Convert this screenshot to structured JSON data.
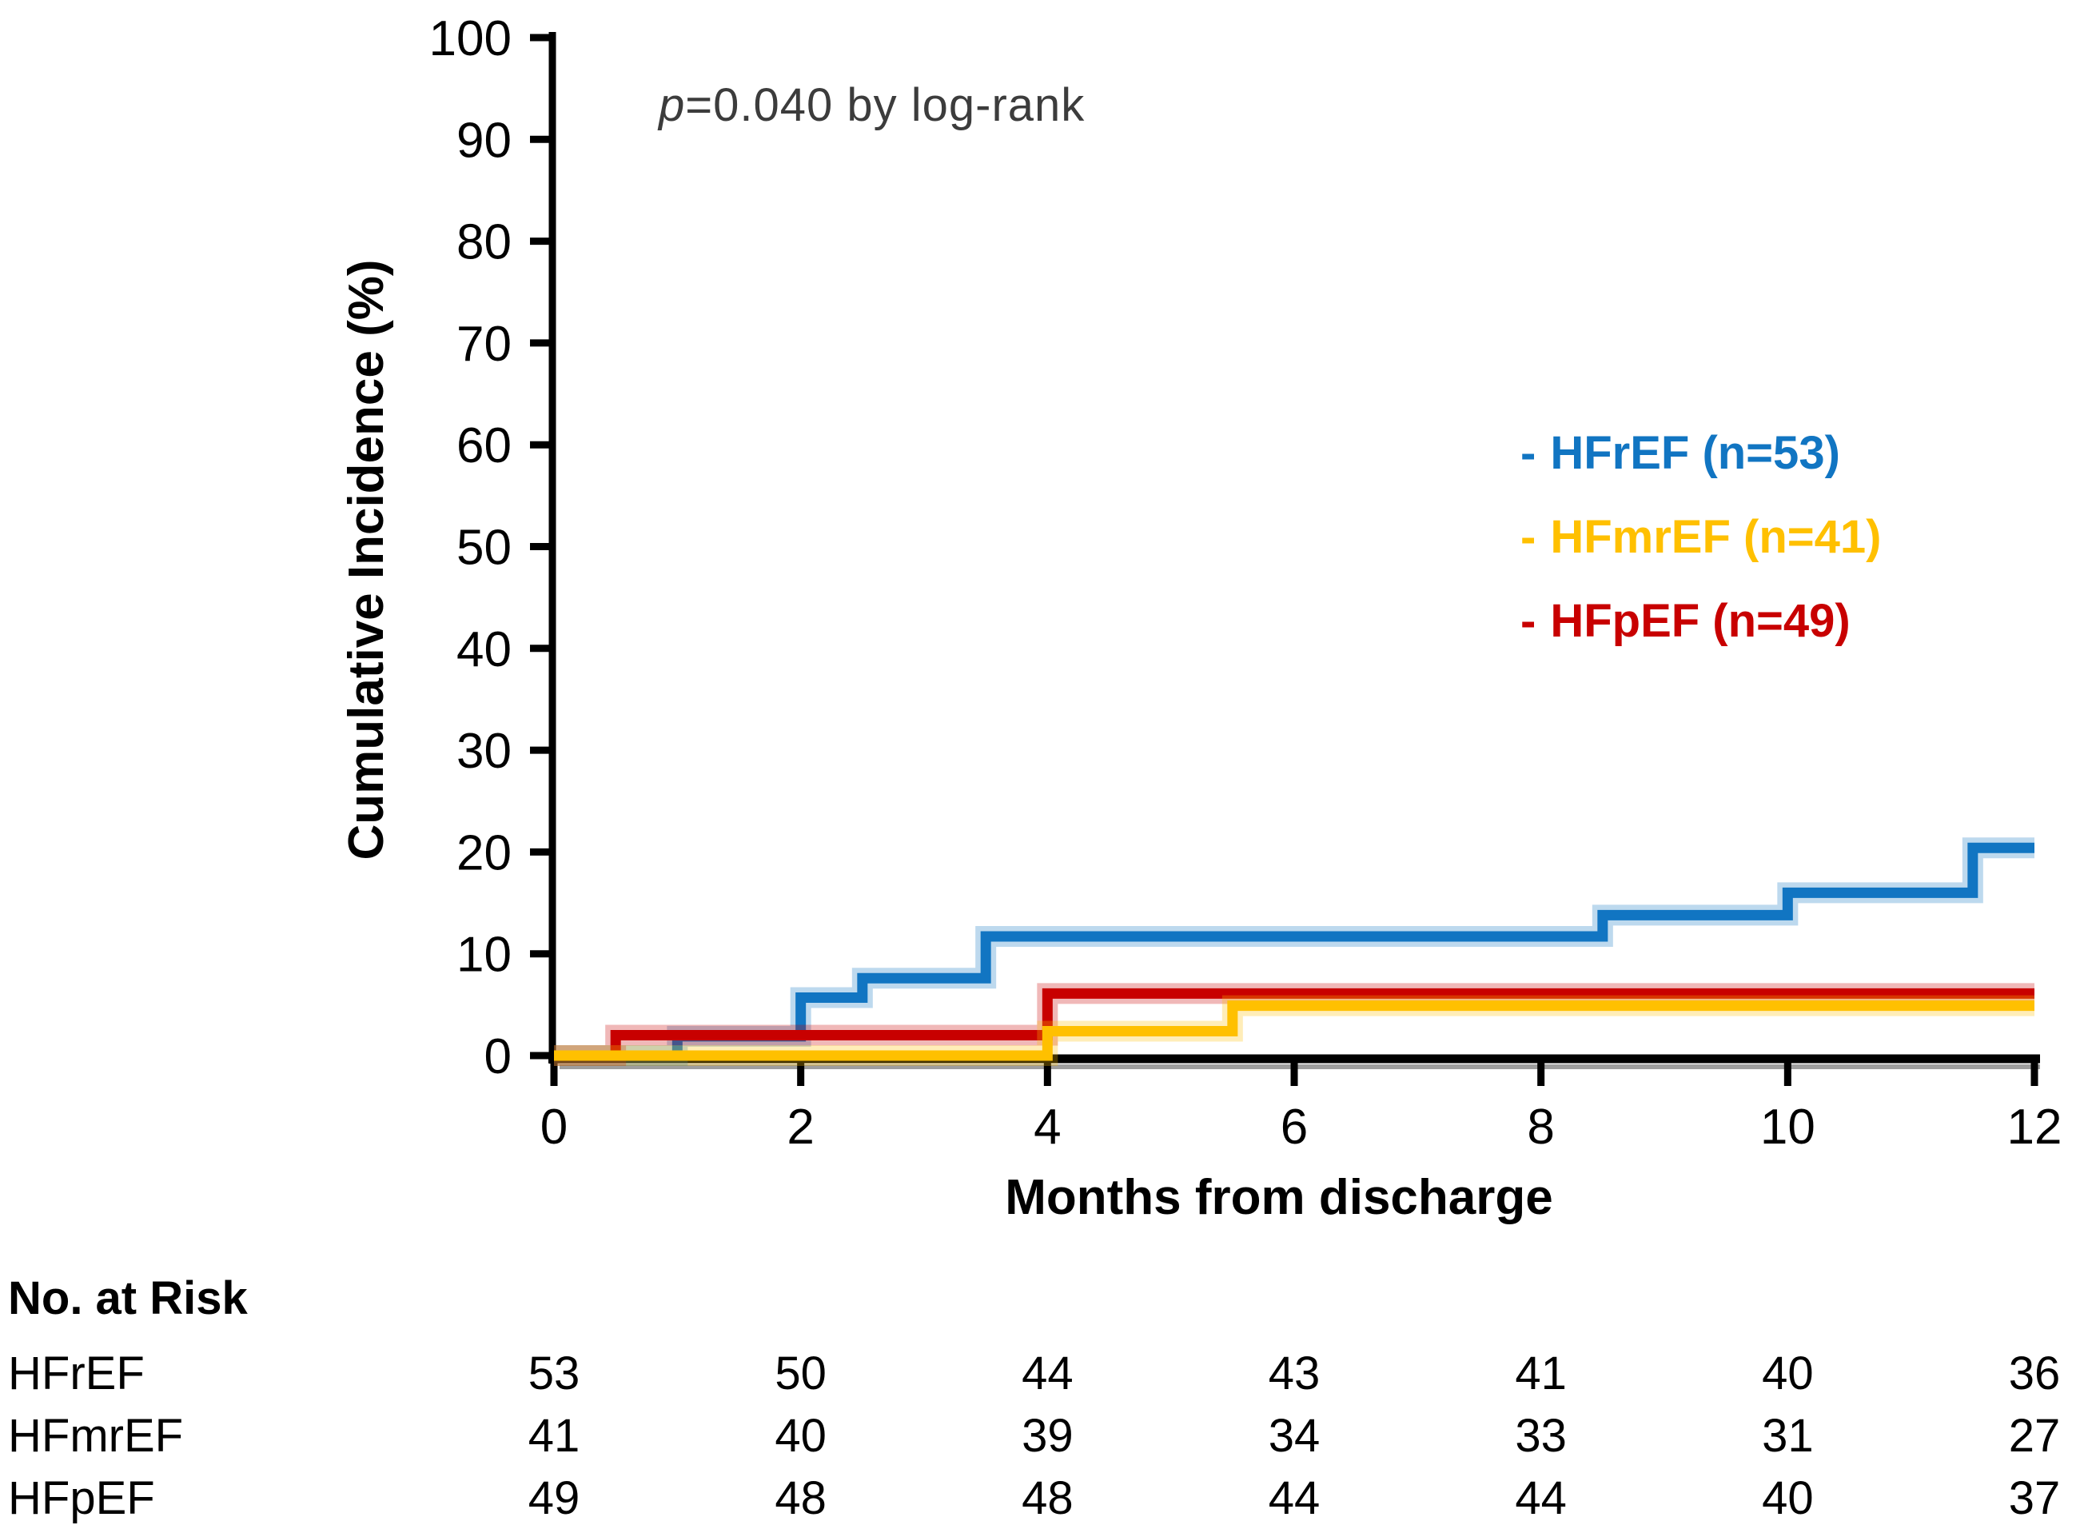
{
  "figure": {
    "annotation": {
      "p_symbol": "p",
      "p_rest": "=0.040 by log-rank"
    },
    "y_axis": {
      "title": "Cumulative Incidence (%)"
    },
    "x_axis": {
      "title": "Months from discharge"
    },
    "legend": [
      {
        "marker": "-",
        "label": "HFrEF (n=53)",
        "color": "#1175C2"
      },
      {
        "marker": "-",
        "label": "HFmrEF (n=41)",
        "color": "#FFC000"
      },
      {
        "marker": "-",
        "label": "HFpEF (n=49)",
        "color": "#C80000"
      }
    ]
  },
  "chart_data": {
    "type": "line",
    "subtype": "kaplan-meier-step-cumulative-incidence",
    "title": "",
    "xlabel": "Months from discharge",
    "ylabel": "Cumulative Incidence (%)",
    "xlim": [
      0,
      12
    ],
    "ylim": [
      0,
      100
    ],
    "x_ticks": [
      0,
      2,
      4,
      6,
      8,
      10,
      12
    ],
    "y_ticks": [
      0,
      10,
      20,
      30,
      40,
      50,
      60,
      70,
      80,
      90,
      100
    ],
    "grid": false,
    "legend_position": "right-middle",
    "annotation": "p=0.040 by log-rank",
    "series": [
      {
        "name": "HFrEF (n=53)",
        "color": "#1175C2",
        "steps": [
          [
            0,
            0
          ],
          [
            1,
            1.9
          ],
          [
            2,
            5.7
          ],
          [
            2.5,
            7.6
          ],
          [
            3.5,
            11.7
          ],
          [
            8.5,
            13.8
          ],
          [
            10,
            16.0
          ],
          [
            11.5,
            20.4
          ],
          [
            12,
            20.4
          ]
        ]
      },
      {
        "name": "HFmrEF (n=41)",
        "color": "#FFC000",
        "steps": [
          [
            0,
            0
          ],
          [
            4,
            2.4
          ],
          [
            5.5,
            4.9
          ],
          [
            12,
            4.9
          ]
        ]
      },
      {
        "name": "HFpEF (n=49)",
        "color": "#C80000",
        "steps": [
          [
            0,
            0
          ],
          [
            0.5,
            2.0
          ],
          [
            4,
            6.1
          ],
          [
            12,
            6.1
          ]
        ]
      }
    ]
  },
  "risk_table": {
    "title": "No. at Risk",
    "time_points": [
      0,
      2,
      4,
      6,
      8,
      10,
      12
    ],
    "rows": [
      {
        "label": "HFrEF",
        "counts": [
          53,
          50,
          44,
          43,
          41,
          40,
          36
        ]
      },
      {
        "label": "HFmrEF",
        "counts": [
          41,
          40,
          39,
          34,
          33,
          31,
          27
        ]
      },
      {
        "label": "HFpEF",
        "counts": [
          49,
          48,
          48,
          44,
          44,
          40,
          37
        ]
      }
    ]
  },
  "colors": {
    "axis": "#000000",
    "axis_shadow": "#9e9e9e",
    "text": "#000000",
    "annotation_text": "#3c3c3c"
  }
}
